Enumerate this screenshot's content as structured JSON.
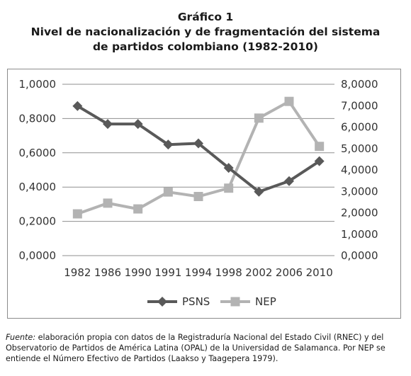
{
  "header": {
    "label": "Gráfico 1",
    "title_line1": "Nivel de nacionalización y de fragmentación del sistema",
    "title_line2": "de partidos colombiano (1982-2010)"
  },
  "chart_data": {
    "type": "line",
    "categories": [
      "1982",
      "1986",
      "1990",
      "1991",
      "1994",
      "1998",
      "2002",
      "2006",
      "2010"
    ],
    "series": [
      {
        "name": "PSNS",
        "axis": "left",
        "marker": "diamond",
        "color": "#595959",
        "values": [
          0.873,
          0.768,
          0.768,
          0.648,
          0.655,
          0.512,
          0.373,
          0.435,
          0.551
        ]
      },
      {
        "name": "NEP",
        "axis": "right",
        "marker": "square",
        "color": "#b3b3b3",
        "values": [
          1.95,
          2.45,
          2.18,
          2.97,
          2.76,
          3.15,
          6.42,
          7.2,
          5.1
        ]
      }
    ],
    "y_left": {
      "ylim": [
        0,
        1
      ],
      "ticks": [
        "1,0000",
        "0,8000",
        "0,6000",
        "0,4000",
        "0,2000",
        "0,0000"
      ]
    },
    "y_right": {
      "ylim": [
        0,
        8
      ],
      "ticks": [
        "8,0000",
        "7,0000",
        "6,0000",
        "5,0000",
        "4,0000",
        "3,0000",
        "2,0000",
        "1,0000",
        "0,0000"
      ]
    },
    "grid": true,
    "legend": "bottom-center"
  },
  "footnote": {
    "lead": "Fuente:",
    "text": " elaboración propia con datos de la Registraduría Nacional del Estado Civil (RNEC) y del Observatorio de Partidos de América Latina (OPAL) de la Universidad de Salamanca. Por NEP se entiende el Número Efectivo de Partidos (Laakso y Taagepera 1979)."
  }
}
